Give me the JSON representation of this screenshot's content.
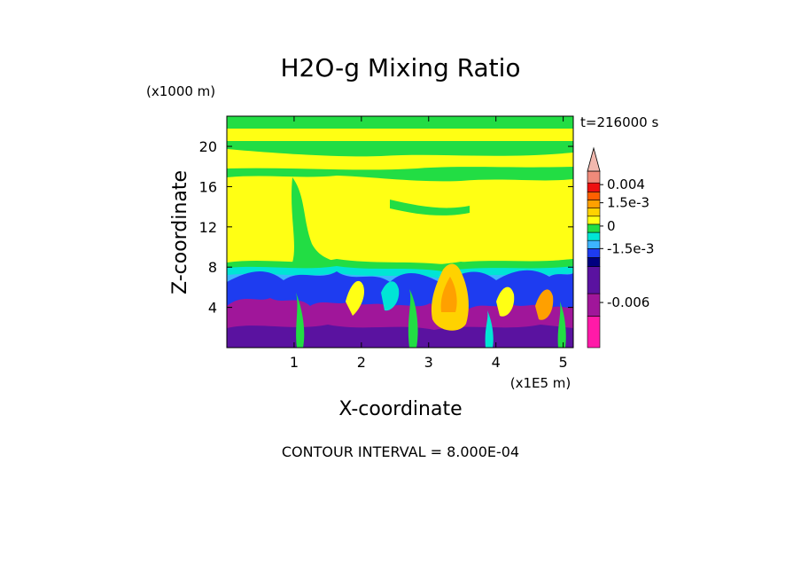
{
  "chart_data": {
    "type": "heatmap",
    "title": "H2O-g Mixing Ratio",
    "xlabel": "X-coordinate",
    "ylabel": "Z-coordinate",
    "x_scale_label": "(x1E5 m)",
    "y_scale_label": "(x1000 m)",
    "time_label": "t=216000 s",
    "contour_interval_label": "CONTOUR INTERVAL = 8.000E-04",
    "xlim": [
      0,
      5.15
    ],
    "ylim": [
      0,
      23
    ],
    "x_ticks": [
      1,
      2,
      3,
      4,
      5
    ],
    "y_ticks": [
      4,
      8,
      12,
      16,
      20
    ],
    "colorbar": {
      "levels": [
        {
          "color": "#ff1aa8"
        },
        {
          "color": "#a0169a"
        },
        {
          "color": "#5a12a0"
        },
        {
          "color": "#000080"
        },
        {
          "color": "#1e3cf0"
        },
        {
          "color": "#3db4ff"
        },
        {
          "color": "#00e5d5"
        },
        {
          "color": "#22dd44"
        },
        {
          "color": "#ffff14"
        },
        {
          "color": "#ffd200"
        },
        {
          "color": "#ffa000"
        },
        {
          "color": "#ff6000"
        },
        {
          "color": "#ee1010"
        },
        {
          "color": "#f08a7a"
        }
      ],
      "labels": [
        {
          "text": "0.004",
          "value": 0.004
        },
        {
          "text": "1.5e-3",
          "value": 0.0015
        },
        {
          "text": "0",
          "value": 0
        },
        {
          "text": "-1.5e-3",
          "value": -0.0015
        },
        {
          "text": "-0.006",
          "value": -0.006
        }
      ]
    },
    "field_colors": {
      "high_strat": "#22dd44",
      "strat_band": "#ffff14",
      "upper_trop": "#ffff14",
      "mid_band": "#22dd44",
      "low_band_1": "#00e5d5",
      "low_band_2": "#3db4ff",
      "blue_layer": "#1e3cf0",
      "purple_layer": "#a0169a",
      "convective": "#ffa000"
    }
  }
}
